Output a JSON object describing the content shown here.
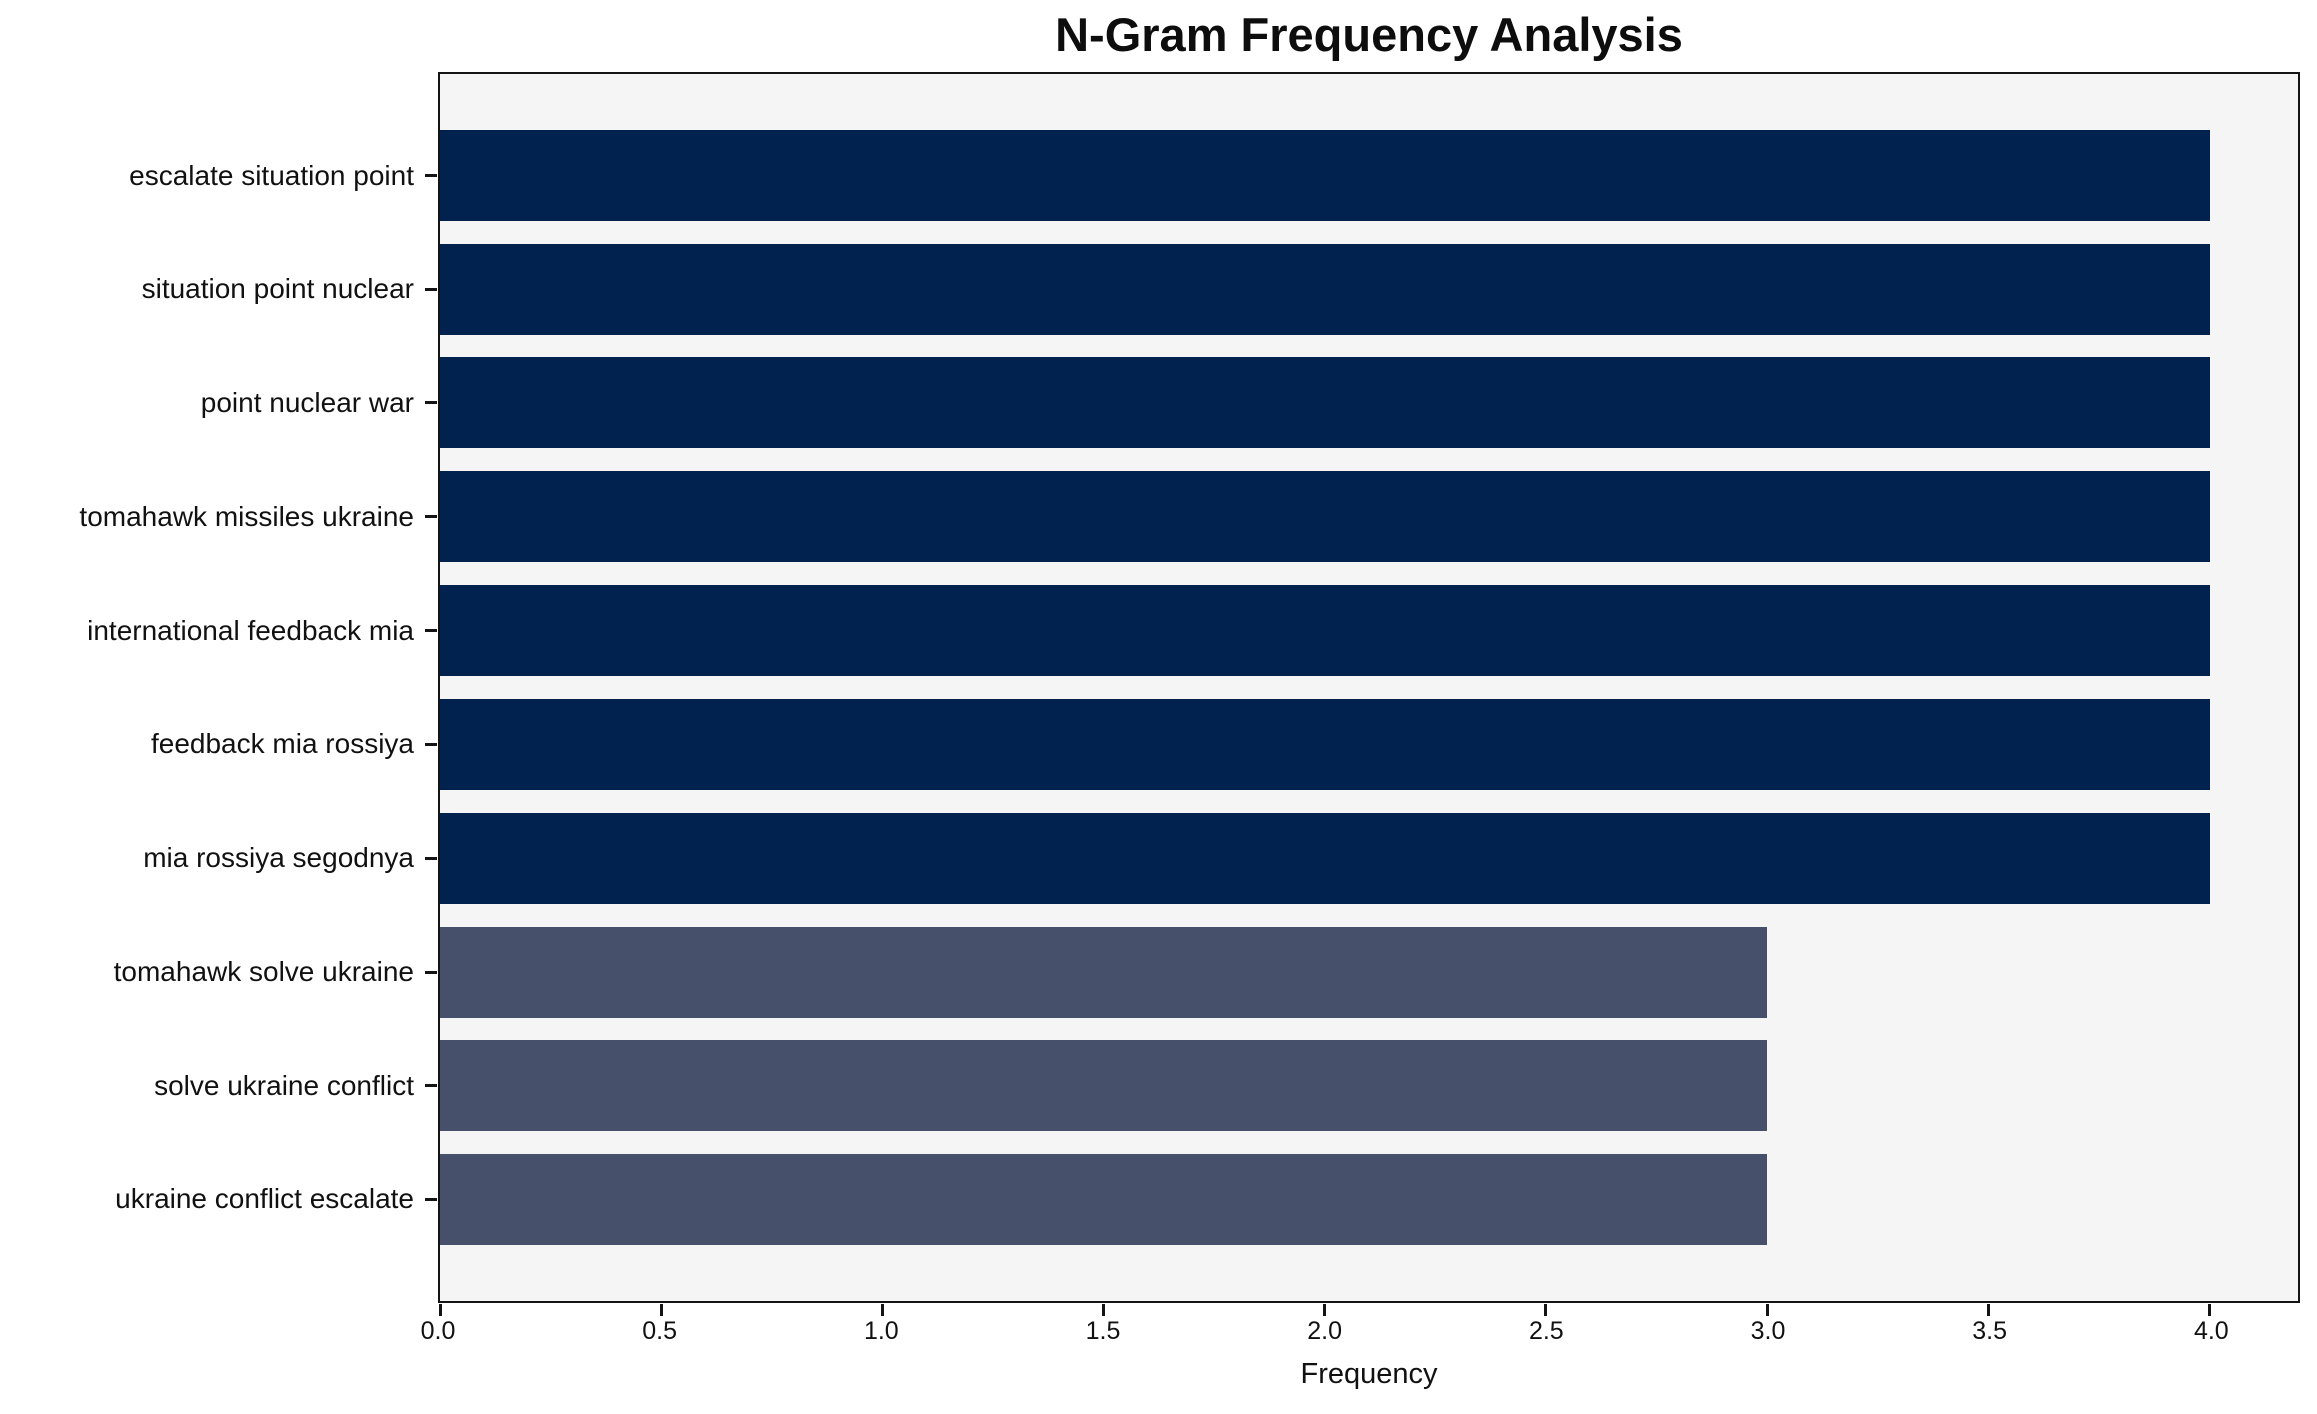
{
  "chart_data": {
    "type": "bar",
    "orientation": "horizontal",
    "title": "N-Gram Frequency Analysis",
    "xlabel": "Frequency",
    "ylabel": "",
    "categories": [
      "escalate situation point",
      "situation point nuclear",
      "point nuclear war",
      "tomahawk missiles ukraine",
      "international feedback mia",
      "feedback mia rossiya",
      "mia rossiya segodnya",
      "tomahawk solve ukraine",
      "solve ukraine conflict",
      "ukraine conflict escalate"
    ],
    "values": [
      4,
      4,
      4,
      4,
      4,
      4,
      4,
      3,
      3,
      3
    ],
    "bar_colors": [
      "#01224e",
      "#01224e",
      "#01224e",
      "#01224e",
      "#01224e",
      "#01224e",
      "#01224e",
      "#46506b",
      "#46506b",
      "#46506b"
    ],
    "xlim": [
      0,
      4.2
    ],
    "xticks": [
      0,
      0.5,
      1,
      1.5,
      2,
      2.5,
      3,
      3.5,
      4
    ],
    "xtick_labels": [
      "0.0",
      "0.5",
      "1.0",
      "1.5",
      "2.0",
      "2.5",
      "3.0",
      "3.5",
      "4.0"
    ],
    "grid": false,
    "legend_position": "none"
  },
  "colors": {
    "figure_bg": "#ffffff",
    "plot_bg": "#f5f5f6",
    "bar_high": "#01224e",
    "bar_low": "#46506b",
    "axis": "#141414",
    "text": "#111111"
  }
}
